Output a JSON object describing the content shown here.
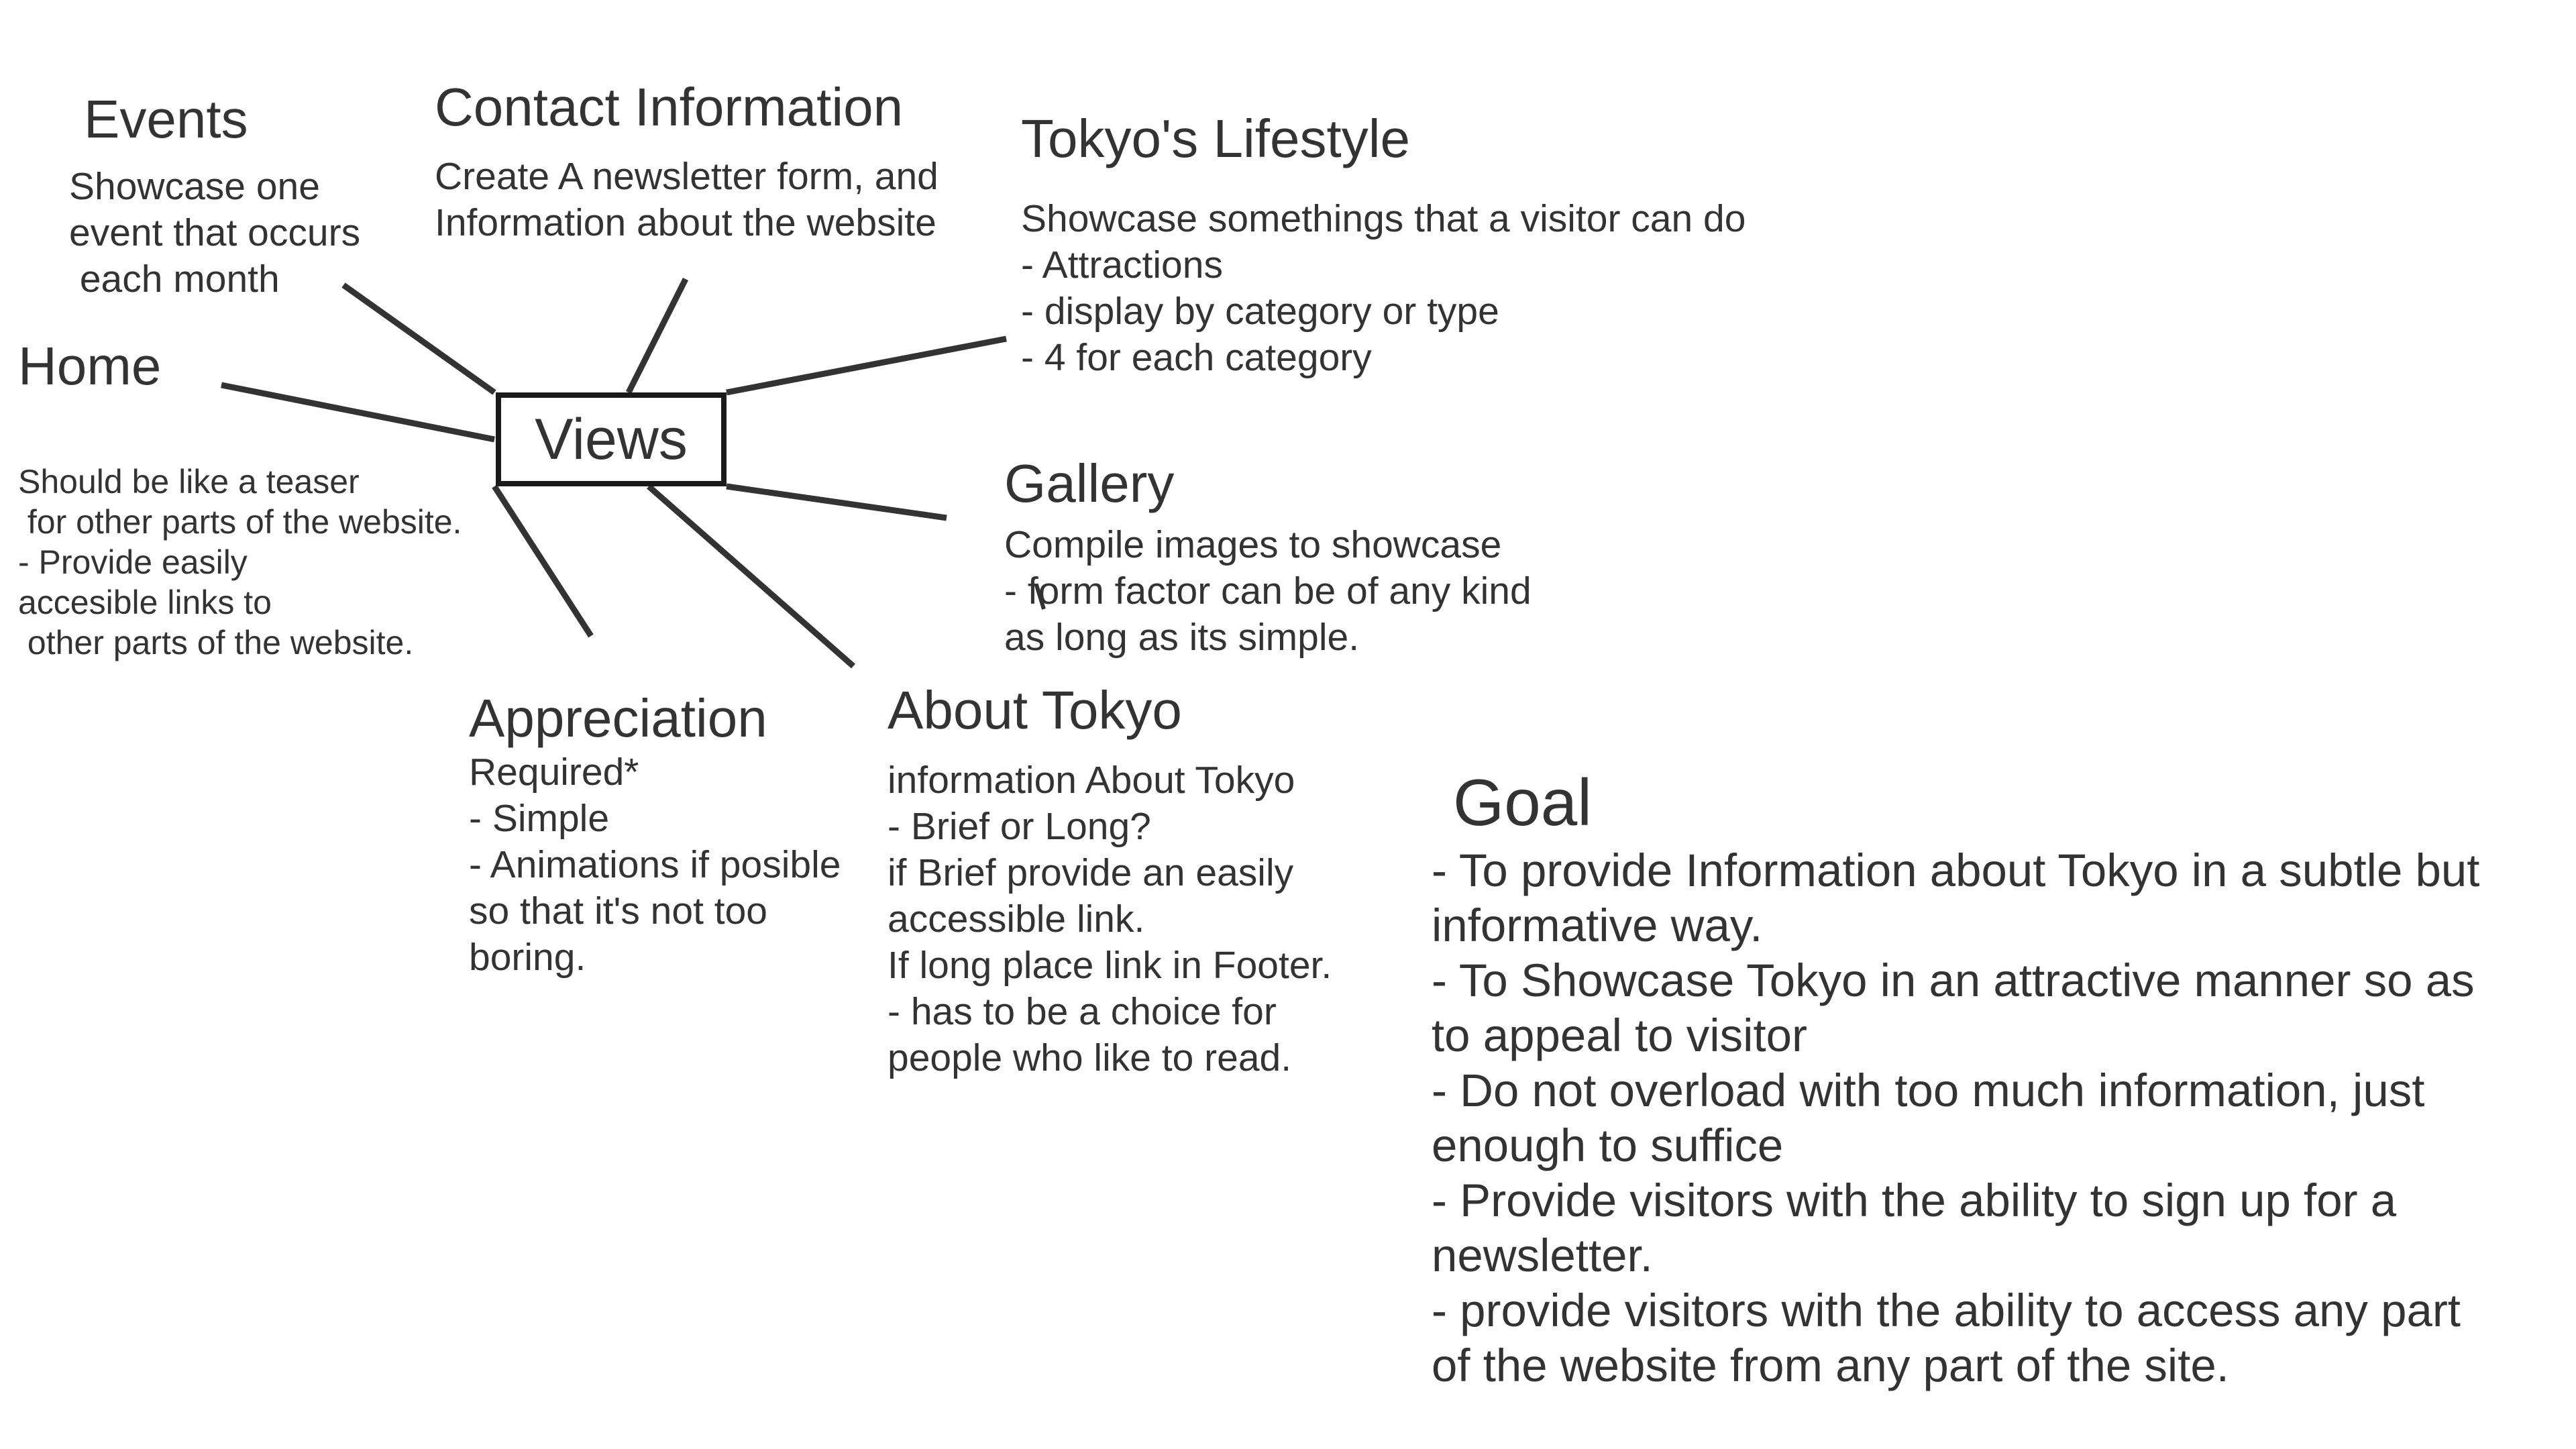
{
  "center": {
    "label": "Views"
  },
  "nodes": {
    "events": {
      "title": "Events",
      "body": "Showcase one\nevent that occurs\n each month"
    },
    "contact": {
      "title": "Contact Information",
      "body": "Create A newsletter form, and\nInformation about the website"
    },
    "lifestyle": {
      "title": "Tokyo's Lifestyle",
      "body": "Showcase somethings that a visitor can do\n- Attractions\n- display by category or type\n- 4 for each category"
    },
    "home": {
      "title": "Home",
      "body": "Should be like a teaser\n for other parts of the website.\n- Provide easily\naccesible links to\n other parts of the website."
    },
    "gallery": {
      "title": "Gallery",
      "body": "Compile images to showcase\n- form factor can be of any kind\nas long as its simple."
    },
    "appreciation": {
      "title": "Appreciation",
      "body": "Required*\n- Simple\n- Animations if posible\nso that it's not too\nboring."
    },
    "about": {
      "title": "About Tokyo",
      "body": "information About Tokyo\n- Brief or Long?\nif Brief provide an easily\naccessible link.\nIf long place link in Footer.\n- has to be a choice for\npeople who like to read."
    }
  },
  "goal": {
    "title": "Goal",
    "body": "- To provide Information about Tokyo in a subtle but\ninformative way.\n- To Showcase Tokyo in an attractive manner so as\nto appeal to visitor\n- Do not overload with too much information, just\nenough to suffice\n- Provide visitors with the ability to sign up for a\nnewsletter.\n- provide visitors with the ability to access any part\nof the website from any part of the site."
  },
  "colors": {
    "text": "#333333",
    "lines": "#333333",
    "box_border": "#1a1a1a",
    "background": "#ffffff"
  }
}
